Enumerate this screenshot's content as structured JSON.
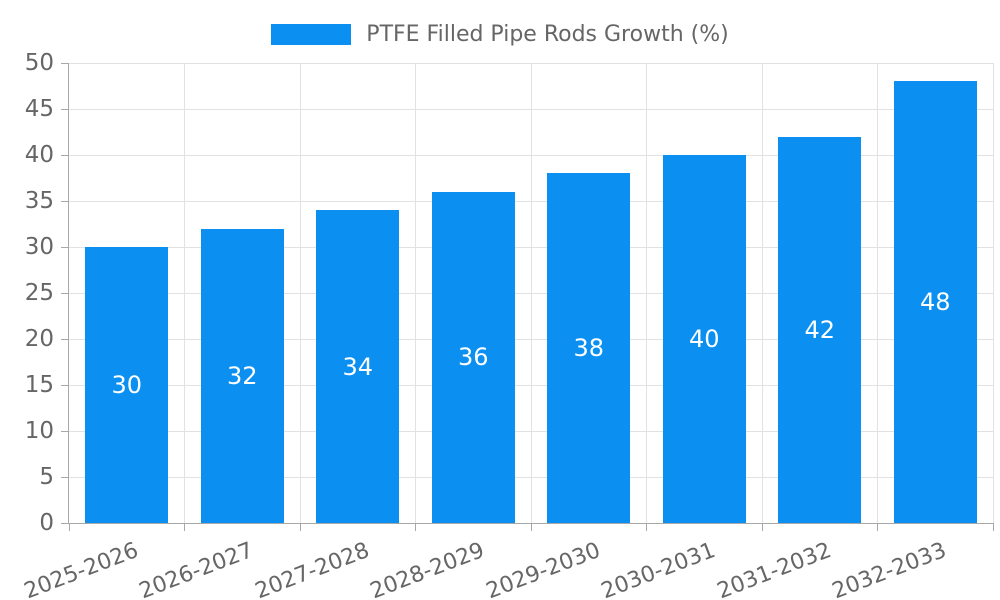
{
  "colors": {
    "bar": "#0b90f2",
    "grid": "#e2e2e2",
    "axis": "#a8a8a8",
    "text": "#666666",
    "bar_label_text": "#ffffff"
  },
  "chart_data": {
    "type": "bar",
    "title": "PTFE Filled Pipe Rods Growth (%)",
    "categories": [
      "2025-2026",
      "2026-2027",
      "2027-2028",
      "2028-2029",
      "2029-2030",
      "2030-2031",
      "2031-2032",
      "2032-2033"
    ],
    "values": [
      30,
      32,
      34,
      36,
      38,
      40,
      42,
      48
    ],
    "xlabel": "",
    "ylabel": "",
    "ylim": [
      0,
      50
    ],
    "ytick_step": 5,
    "ytick_labels": [
      "0",
      "5",
      "10",
      "15",
      "20",
      "25",
      "30",
      "35",
      "40",
      "45",
      "50"
    ],
    "grid": true,
    "legend_position": "top-center",
    "bar_labels_inside": true
  }
}
